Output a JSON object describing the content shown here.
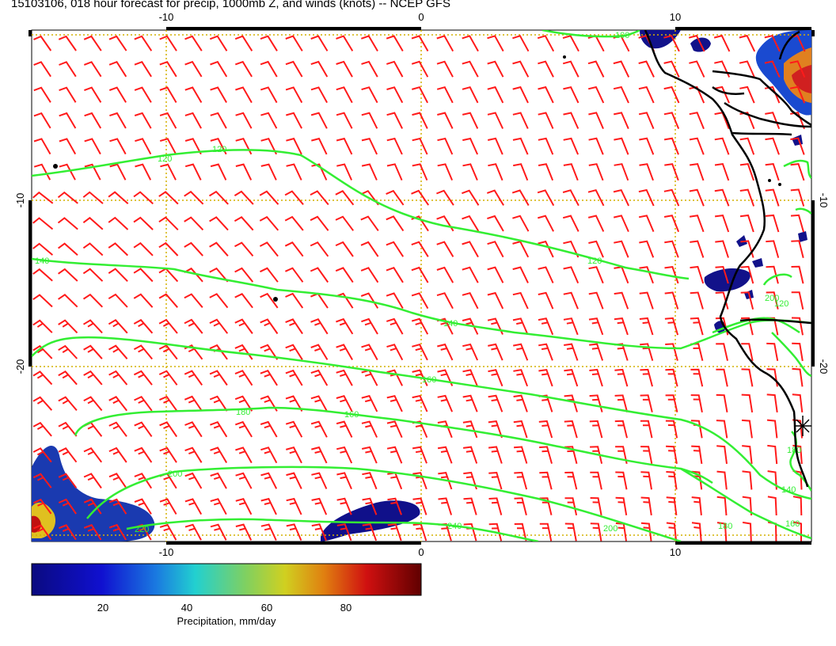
{
  "title": "15103106, 018 hour forecast for precip, 1000mb Z, and winds (knots) -- NCEP GFS",
  "map": {
    "x_ticks_top": [
      "-10",
      "0",
      "10"
    ],
    "x_ticks_bottom": [
      "-10",
      "0",
      "10"
    ],
    "y_ticks_left": [
      "-10",
      "-20"
    ],
    "y_ticks_right": [
      "-10",
      "-20"
    ],
    "contour_labels": [
      "100",
      "120",
      "120",
      "120",
      "120",
      "140",
      "140",
      "140",
      "160",
      "160",
      "160",
      "180",
      "180",
      "180",
      "200",
      "200",
      "200",
      "220",
      "240"
    ],
    "colors": {
      "contour": "#33ee33",
      "wind": "#ff1a1a",
      "grid": "#d4b000",
      "coast": "#000000"
    }
  },
  "colorbar": {
    "label": "Precipitation, mm/day",
    "ticks": [
      "20",
      "40",
      "60",
      "80"
    ]
  }
}
